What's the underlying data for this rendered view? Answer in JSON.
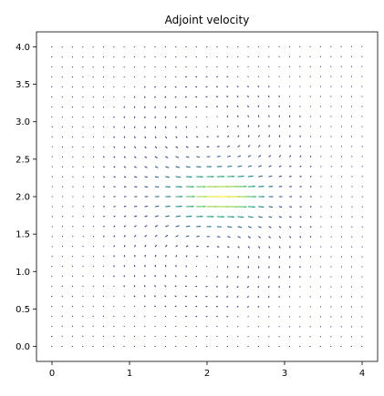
{
  "chart_data": {
    "type": "quiver",
    "title": "Adjoint velocity",
    "xlabel": "",
    "ylabel": "",
    "xlim": [
      -0.2,
      4.2
    ],
    "ylim": [
      -0.2,
      4.2
    ],
    "x_ticks": [
      0,
      1,
      2,
      3,
      4
    ],
    "x_tick_labels": [
      "0",
      "1",
      "2",
      "3",
      "4"
    ],
    "y_ticks": [
      0.0,
      0.5,
      1.0,
      1.5,
      2.0,
      2.5,
      3.0,
      3.5,
      4.0
    ],
    "y_tick_labels": [
      "0.0",
      "0.5",
      "1.0",
      "1.5",
      "2.0",
      "2.5",
      "3.0",
      "3.5",
      "4.0"
    ],
    "grid": false,
    "legend": "none",
    "colormap": "viridis",
    "field": {
      "domain_x": [
        0,
        4
      ],
      "domain_y": [
        0,
        4
      ],
      "samples": 31,
      "vortices": [
        {
          "center": [
            2.0,
            2.65
          ],
          "rotation": "counter-clockwise"
        },
        {
          "center": [
            2.0,
            1.4
          ],
          "rotation": "clockwise"
        }
      ],
      "max_speed_location": [
        2.15,
        2.0
      ]
    },
    "colors": {
      "low": "#440154",
      "mid": "#21918c",
      "high": "#fde725"
    }
  }
}
